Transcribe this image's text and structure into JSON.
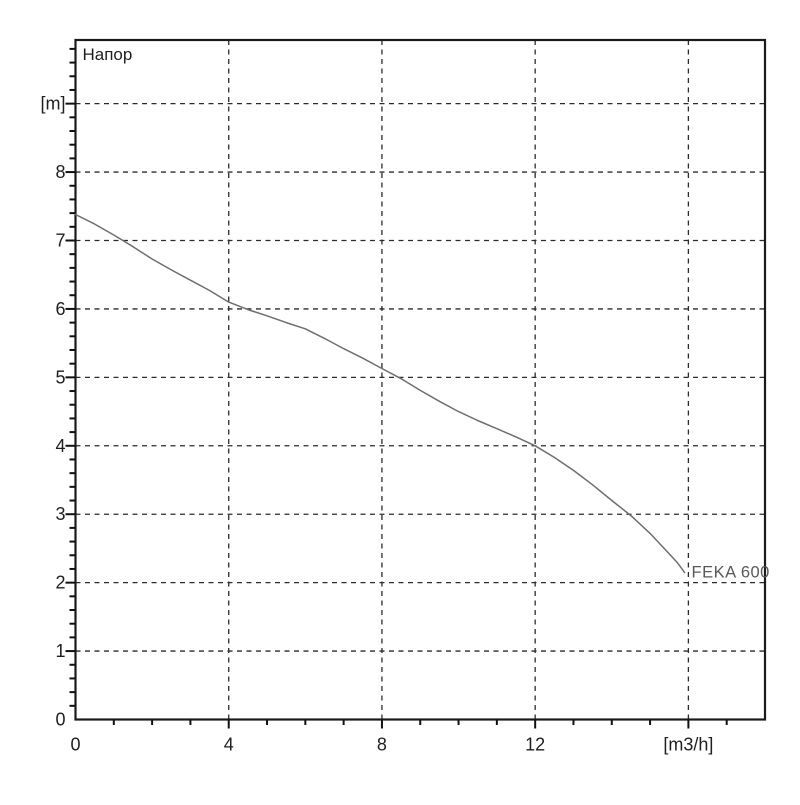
{
  "chart_data": {
    "type": "line",
    "title": "Напор",
    "xlabel": "[m3/h]",
    "ylabel": "[m]",
    "xlim": [
      0,
      18
    ],
    "ylim": [
      0,
      9.93
    ],
    "grid": "dashed",
    "x_gridlines": [
      4,
      8,
      12,
      16
    ],
    "y_gridlines": [
      1,
      2,
      3,
      4,
      5,
      6,
      7,
      8,
      9
    ],
    "x_minor_step": 1,
    "y_minor_step": 0.2,
    "x_major_ticks": [
      0,
      4,
      8,
      12,
      16
    ],
    "x_tick_labels": [
      "0",
      "4",
      "8",
      "12",
      "[m3/h]"
    ],
    "y_major_ticks": [
      0,
      1,
      2,
      3,
      4,
      5,
      6,
      7,
      8,
      9
    ],
    "y_tick_labels": [
      "0",
      "1",
      "2",
      "3",
      "4",
      "5",
      "6",
      "7",
      "8",
      "[m]"
    ],
    "series": [
      {
        "name": "FEKA 600",
        "color": "#6e6e6e",
        "label_color": "#585858",
        "points": [
          [
            0,
            7.38
          ],
          [
            0.5,
            7.24
          ],
          [
            1,
            7.08
          ],
          [
            1.5,
            6.91
          ],
          [
            2,
            6.73
          ],
          [
            2.5,
            6.57
          ],
          [
            3,
            6.42
          ],
          [
            3.5,
            6.27
          ],
          [
            4,
            6.1
          ],
          [
            4.5,
            5.99
          ],
          [
            5,
            5.9
          ],
          [
            5.5,
            5.8
          ],
          [
            6,
            5.71
          ],
          [
            6.5,
            5.57
          ],
          [
            7,
            5.42
          ],
          [
            7.5,
            5.28
          ],
          [
            8,
            5.13
          ],
          [
            8.5,
            4.98
          ],
          [
            9,
            4.81
          ],
          [
            9.5,
            4.65
          ],
          [
            10,
            4.5
          ],
          [
            10.5,
            4.37
          ],
          [
            11,
            4.25
          ],
          [
            11.5,
            4.13
          ],
          [
            12,
            4.0
          ],
          [
            12.5,
            3.83
          ],
          [
            13,
            3.64
          ],
          [
            13.5,
            3.43
          ],
          [
            14,
            3.2
          ],
          [
            14.5,
            2.98
          ],
          [
            15,
            2.72
          ],
          [
            15.4,
            2.48
          ],
          [
            15.7,
            2.3
          ],
          [
            15.9,
            2.15
          ]
        ]
      }
    ],
    "colors": {
      "background": "#ffffff",
      "axis": "#1a1a1a",
      "grid": "#2b2b2b",
      "tick": "#111111",
      "text": "#1f1f1f"
    }
  }
}
